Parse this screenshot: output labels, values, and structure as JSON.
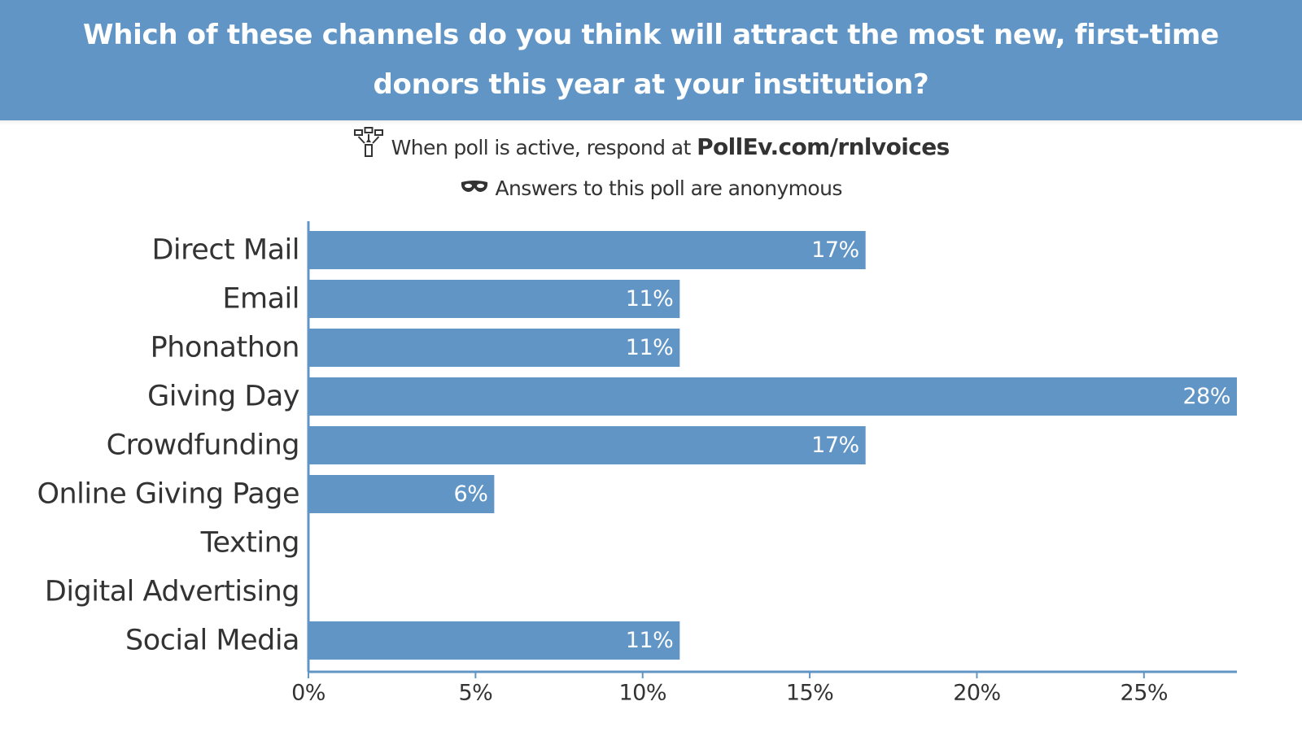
{
  "header": {
    "question": "Which of these channels do you think will attract the most new, first-time donors this year at your institution?"
  },
  "info": {
    "respond_prefix": "When poll is active, respond at",
    "respond_url": "PollEv.com/rnlvoices",
    "respond_icon": "devices-icon",
    "anonymous_text": "Answers to this poll are anonymous",
    "anonymous_icon": "mask-icon"
  },
  "colors": {
    "accent": "#6195c6",
    "text": "#333333",
    "bar_label": "#ffffff"
  },
  "chart_data": {
    "type": "bar",
    "orientation": "horizontal",
    "categories": [
      "Direct Mail",
      "Email",
      "Phonathon",
      "Giving Day",
      "Crowdfunding",
      "Online Giving Page",
      "Texting",
      "Digital Advertising",
      "Social Media"
    ],
    "values": [
      16.67,
      11.11,
      11.11,
      27.78,
      16.67,
      5.56,
      0,
      0,
      11.11
    ],
    "value_labels": [
      "17%",
      "11%",
      "11%",
      "28%",
      "17%",
      "6%",
      "",
      "",
      "11%"
    ],
    "xlim": [
      0,
      27.78
    ],
    "xticks": [
      0,
      5,
      10,
      15,
      20,
      25
    ],
    "xtick_labels": [
      "0%",
      "5%",
      "10%",
      "15%",
      "20%",
      "25%"
    ],
    "title": "",
    "xlabel": "",
    "ylabel": "",
    "grid": false,
    "legend": "none"
  }
}
